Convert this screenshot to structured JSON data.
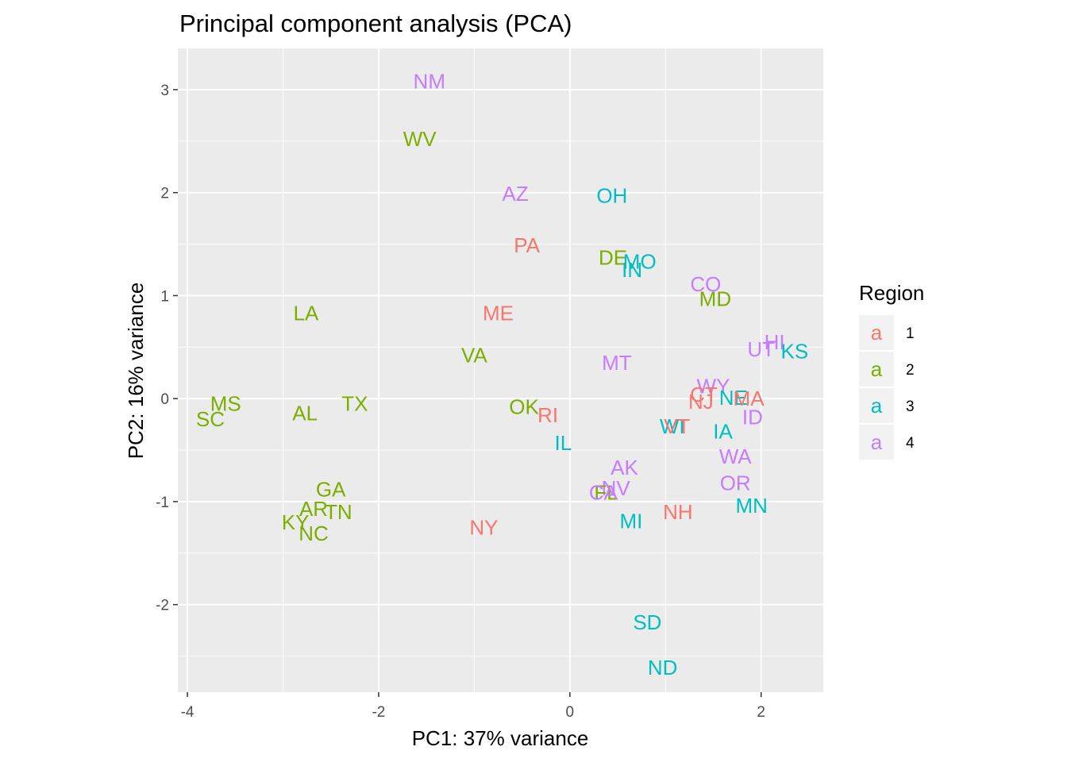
{
  "chart_data": {
    "type": "scatter",
    "title": "Principal component analysis (PCA)",
    "xlabel": "PC1: 37% variance",
    "ylabel": "PC2: 16% variance",
    "xlim": [
      -4.1,
      2.65
    ],
    "ylim": [
      -2.85,
      3.4
    ],
    "x_ticks": [
      -4,
      -2,
      0,
      2
    ],
    "y_ticks": [
      -2,
      -1,
      0,
      1,
      2,
      3
    ],
    "grid": true,
    "legend": {
      "title": "Region",
      "position": "right",
      "glyph": "a",
      "entries": [
        {
          "label": "1",
          "color": "#F8766D"
        },
        {
          "label": "2",
          "color": "#7CAE00"
        },
        {
          "label": "3",
          "color": "#00BFC4"
        },
        {
          "label": "4",
          "color": "#C77CFF"
        }
      ]
    },
    "points": [
      {
        "label": "NM",
        "x": -1.47,
        "y": 3.08,
        "region": "4"
      },
      {
        "label": "WV",
        "x": -1.57,
        "y": 2.52,
        "region": "2"
      },
      {
        "label": "AZ",
        "x": -0.57,
        "y": 1.99,
        "region": "4"
      },
      {
        "label": "OH",
        "x": 0.44,
        "y": 1.97,
        "region": "3"
      },
      {
        "label": "PA",
        "x": -0.45,
        "y": 1.49,
        "region": "1"
      },
      {
        "label": "DE",
        "x": 0.45,
        "y": 1.37,
        "region": "2"
      },
      {
        "label": "MO",
        "x": 0.73,
        "y": 1.33,
        "region": "3"
      },
      {
        "label": "IN",
        "x": 0.65,
        "y": 1.25,
        "region": "3"
      },
      {
        "label": "CO",
        "x": 1.42,
        "y": 1.11,
        "region": "4"
      },
      {
        "label": "MD",
        "x": 1.52,
        "y": 0.97,
        "region": "2"
      },
      {
        "label": "LA",
        "x": -2.76,
        "y": 0.83,
        "region": "2"
      },
      {
        "label": "ME",
        "x": -0.75,
        "y": 0.83,
        "region": "1"
      },
      {
        "label": "HI",
        "x": 2.14,
        "y": 0.55,
        "region": "4"
      },
      {
        "label": "UT",
        "x": 2.0,
        "y": 0.48,
        "region": "4"
      },
      {
        "label": "KS",
        "x": 2.35,
        "y": 0.46,
        "region": "3"
      },
      {
        "label": "VA",
        "x": -1.0,
        "y": 0.42,
        "region": "2"
      },
      {
        "label": "MT",
        "x": 0.49,
        "y": 0.35,
        "region": "4"
      },
      {
        "label": "WY",
        "x": 1.5,
        "y": 0.12,
        "region": "4"
      },
      {
        "label": "CT",
        "x": 1.4,
        "y": 0.04,
        "region": "1"
      },
      {
        "label": "NE",
        "x": 1.71,
        "y": 0.01,
        "region": "3"
      },
      {
        "label": "MA",
        "x": 1.87,
        "y": 0.0,
        "region": "1"
      },
      {
        "label": "NJ",
        "x": 1.37,
        "y": -0.03,
        "region": "1"
      },
      {
        "label": "OK",
        "x": -0.48,
        "y": -0.08,
        "region": "2"
      },
      {
        "label": "MS",
        "x": -3.6,
        "y": -0.05,
        "region": "2"
      },
      {
        "label": "TX",
        "x": -2.25,
        "y": -0.05,
        "region": "2"
      },
      {
        "label": "RI",
        "x": -0.23,
        "y": -0.16,
        "region": "1"
      },
      {
        "label": "AL",
        "x": -2.77,
        "y": -0.14,
        "region": "2"
      },
      {
        "label": "SC",
        "x": -3.76,
        "y": -0.2,
        "region": "2"
      },
      {
        "label": "ID",
        "x": 1.91,
        "y": -0.18,
        "region": "4"
      },
      {
        "label": "WI",
        "x": 1.07,
        "y": -0.27,
        "region": "3"
      },
      {
        "label": "VT",
        "x": 1.12,
        "y": -0.27,
        "region": "1"
      },
      {
        "label": "IA",
        "x": 1.6,
        "y": -0.32,
        "region": "3"
      },
      {
        "label": "IL",
        "x": -0.07,
        "y": -0.43,
        "region": "3"
      },
      {
        "label": "WA",
        "x": 1.73,
        "y": -0.56,
        "region": "4"
      },
      {
        "label": "AK",
        "x": 0.57,
        "y": -0.67,
        "region": "4"
      },
      {
        "label": "OR",
        "x": 1.73,
        "y": -0.82,
        "region": "4"
      },
      {
        "label": "NV",
        "x": 0.48,
        "y": -0.87,
        "region": "4"
      },
      {
        "label": "GA",
        "x": -2.5,
        "y": -0.88,
        "region": "2"
      },
      {
        "label": "FL",
        "x": 0.38,
        "y": -0.91,
        "region": "2"
      },
      {
        "label": "CA",
        "x": 0.35,
        "y": -0.91,
        "region": "4"
      },
      {
        "label": "MN",
        "x": 1.9,
        "y": -1.04,
        "region": "3"
      },
      {
        "label": "AR",
        "x": -2.68,
        "y": -1.07,
        "region": "2"
      },
      {
        "label": "TN",
        "x": -2.42,
        "y": -1.1,
        "region": "2"
      },
      {
        "label": "NH",
        "x": 1.13,
        "y": -1.1,
        "region": "1"
      },
      {
        "label": "KY",
        "x": -2.87,
        "y": -1.2,
        "region": "2"
      },
      {
        "label": "MI",
        "x": 0.64,
        "y": -1.19,
        "region": "3"
      },
      {
        "label": "NY",
        "x": -0.9,
        "y": -1.25,
        "region": "1"
      },
      {
        "label": "NC",
        "x": -2.68,
        "y": -1.31,
        "region": "2"
      },
      {
        "label": "SD",
        "x": 0.81,
        "y": -2.17,
        "region": "3"
      },
      {
        "label": "ND",
        "x": 0.97,
        "y": -2.61,
        "region": "3"
      }
    ]
  }
}
